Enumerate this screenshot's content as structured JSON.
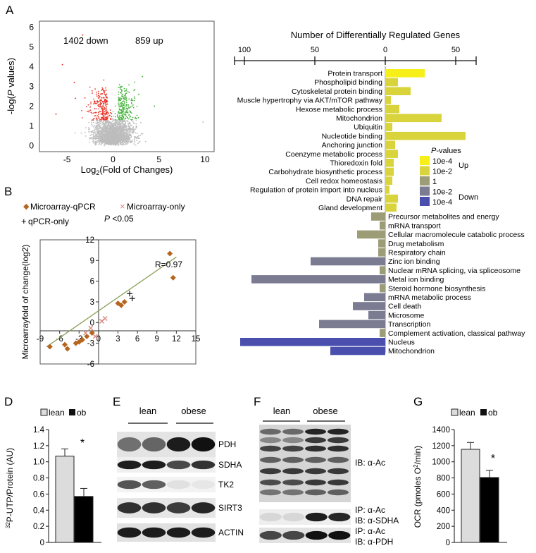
{
  "panels": {
    "a": "A",
    "b": "B",
    "d": "D",
    "e": "E",
    "f": "F",
    "g": "G"
  },
  "volcano": {
    "down_label": "1402 down",
    "up_label": "859 up",
    "ylabel_pre": "-log(",
    "ylabel_italic": "P",
    "ylabel_post": " values)",
    "xlabel_pre": "Log",
    "xlabel_sub": "2",
    "xlabel_post": "(Fold of Changes)",
    "xticks": [
      "-5",
      "0",
      "5",
      "10"
    ],
    "yticks": [
      "0",
      "1",
      "2",
      "3",
      "4",
      "5",
      "6"
    ],
    "threshold_y": 1.3,
    "colors": {
      "down": "#e8362a",
      "up": "#4bb543",
      "ns": "#bdbdbd"
    }
  },
  "go_chart": {
    "title": "Number of Differentially Regulated Genes",
    "axis_ticks": [
      "100",
      "50",
      "0",
      "50"
    ],
    "legend": {
      "title_italic": "P",
      "title_rest": "-values",
      "up_label": "Up",
      "down_label": "Down",
      "levels": [
        {
          "label": "10e-4",
          "color": "#f7ef18"
        },
        {
          "label": "10e-2",
          "color": "#d9d43c"
        },
        {
          "label": "1",
          "color": "#9c9c76"
        },
        {
          "label": "10e-2",
          "color": "#7b7c92"
        },
        {
          "label": "10e-4",
          "color": "#4a4fae"
        }
      ]
    }
  },
  "scatter": {
    "legend_series1": "Microarray-qPCR",
    "legend_series2": "Microarray-only",
    "legend_series3": "qPCR-only",
    "pval_italic": "P",
    "pval_rest": " <0.05",
    "r_label": "R=0.97",
    "ylabel": "Microarrayfold of change(log2)",
    "xticks": [
      "-9",
      "-6",
      "-3",
      "0",
      "3",
      "6",
      "9",
      "12",
      "15"
    ],
    "yticks": [
      "12",
      "9",
      "6",
      "3",
      "0",
      "-3",
      "-6"
    ]
  },
  "bar_d": {
    "legend_lean": "lean",
    "legend_ob": "ob",
    "ylabel_pre": "",
    "ylabel_sup": "32",
    "ylabel_post": "P-UTP/Protein (AU)",
    "yticks": [
      "0",
      "0.2",
      "0.4",
      "0.6",
      "0.8",
      "1.0",
      "1.2",
      "1.4"
    ],
    "star": "*"
  },
  "blot_e": {
    "group1": "lean",
    "group2": "obese",
    "bands": [
      "PDH",
      "SDHA",
      "TK2",
      "SIRT3",
      "ACTIN"
    ]
  },
  "blot_f": {
    "group1": "lean",
    "group2": "obese",
    "label1": "IB: α-Ac",
    "label2a": "IP: α-Ac",
    "label2b": "IB: α-SDHA",
    "label3a": "IP: α-Ac",
    "label3b": "IB: α-PDH"
  },
  "bar_g": {
    "legend_lean": "lean",
    "legend_ob": "ob",
    "ylabel_pre": "OCR (pmoles O",
    "ylabel_sup": "2",
    "ylabel_post": "/min)",
    "yticks": [
      "0",
      "200",
      "400",
      "600",
      "800",
      "1000",
      "1200",
      "1400"
    ],
    "star": "*"
  },
  "chart_data": [
    {
      "type": "bar",
      "panel": "A (right)",
      "title": "Number of Differentially Regulated Genes",
      "orientation": "horizontal",
      "categories": [
        "Protein transport",
        "Phospholipid binding",
        "Cytoskeletal protein binding",
        "Muscle hypertrophy via AKT/mTOR pathway",
        "Hexose metabolic process",
        "Mitochondrion",
        "Ubiquitin",
        "Nucleotide binding",
        "Anchoring junction",
        "Coenzyme metabolic process",
        "Thioredoxin fold",
        "Carbohydrate biosynthetic process",
        "Cell redox homeostasis",
        "Regulation of protein import into nucleus",
        "DNA repair",
        "Gland development",
        "Precursor metabolites and energy",
        "mRNA transport",
        "Cellular macromolecule catabolic process",
        "Drug metabolism",
        "Respiratory chain",
        "Zinc ion binding",
        "Nuclear mRNA splicing, via spliceosome",
        "Metal ion binding",
        "Steroid hormone biosynthesis",
        "mRNA metabolic process",
        "Cell death",
        "Microsome",
        "Transcription",
        "Complement activation, classical pathway",
        "Nucleus",
        "Mitochondrion"
      ],
      "values": [
        28,
        9,
        18,
        4,
        10,
        40,
        5,
        57,
        7,
        9,
        6,
        6,
        5,
        3,
        9,
        8,
        -10,
        -4,
        -20,
        -5,
        -5,
        -53,
        -4,
        -95,
        -4,
        -15,
        -23,
        -12,
        -47,
        -4,
        -103,
        -39
      ],
      "value_note": "positive = up-regulated, negative = down-regulated",
      "color_level": [
        0,
        1,
        1,
        1,
        1,
        1,
        1,
        1,
        1,
        1,
        1,
        1,
        1,
        1,
        1,
        1,
        2,
        2,
        2,
        2,
        2,
        3,
        2,
        3,
        2,
        3,
        3,
        3,
        3,
        2,
        4,
        4
      ],
      "xlim": [
        -115,
        70
      ]
    },
    {
      "type": "scatter",
      "panel": "B",
      "series": [
        {
          "name": "Microarray-qPCR",
          "x": [
            -7.5,
            -5.2,
            -4.8,
            -3.5,
            -3.0,
            -2.5,
            -1.8,
            -1.0,
            3.0,
            3.5,
            4.0,
            11.0,
            11.5
          ],
          "y": [
            -3.5,
            -3.2,
            -3.8,
            -3.0,
            -2.8,
            -2.5,
            -2.0,
            -1.5,
            2.8,
            2.5,
            3.0,
            10.0,
            6.5
          ]
        },
        {
          "name": "Microarray-only",
          "x": [
            -2.0,
            -1.2,
            -0.5,
            0.5,
            1.0
          ],
          "y": [
            -1.5,
            -0.8,
            -2.0,
            0.2,
            0.6
          ]
        },
        {
          "name": "qPCR-only",
          "x": [
            4.8,
            5.2
          ],
          "y": [
            4.2,
            3.5
          ]
        }
      ],
      "fit": {
        "x": [
          -8,
          12
        ],
        "y": [
          -3.5,
          9.5
        ]
      },
      "annotation": "R=0.97",
      "ylabel": "Microarrayfold of change(log2)",
      "xlim": [
        -9,
        15
      ],
      "ylim": [
        -6,
        12
      ]
    },
    {
      "type": "bar",
      "panel": "D",
      "categories": [
        "lean",
        "ob"
      ],
      "values": [
        1.07,
        0.57
      ],
      "errors": [
        0.09,
        0.1
      ],
      "ylabel": "32P-UTP/Protein (AU)",
      "ylim": [
        0,
        1.4
      ]
    },
    {
      "type": "bar",
      "panel": "G",
      "categories": [
        "lean",
        "ob"
      ],
      "values": [
        1155,
        805
      ],
      "errors": [
        85,
        90
      ],
      "ylabel": "OCR (pmoles O2/min)",
      "ylim": [
        0,
        1400
      ]
    }
  ]
}
